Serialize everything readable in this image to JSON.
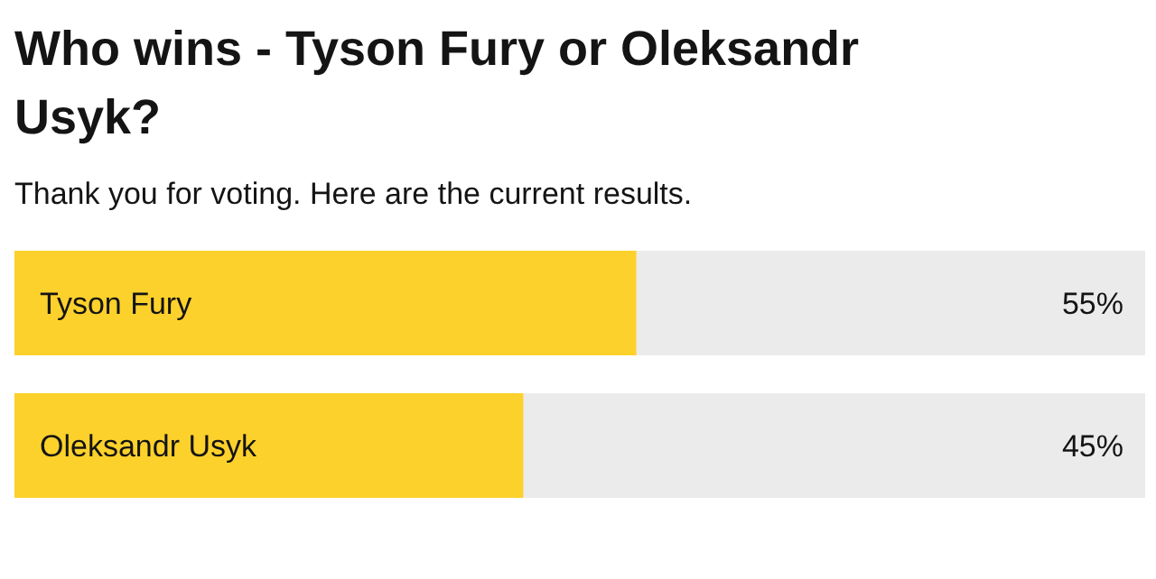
{
  "chart_data": {
    "type": "bar",
    "orientation": "horizontal",
    "title": "Who wins - Tyson Fury or Oleksandr Usyk?",
    "subtitle": "Thank you for voting. Here are the current results.",
    "categories": [
      "Tyson Fury",
      "Oleksandr Usyk"
    ],
    "values": [
      55,
      45
    ],
    "color": "#fdd12b",
    "value_labels": [
      "55%",
      "45%"
    ],
    "xlim": [
      0,
      100
    ],
    "tick_labels": "y",
    "grid": false,
    "legend": false
  }
}
